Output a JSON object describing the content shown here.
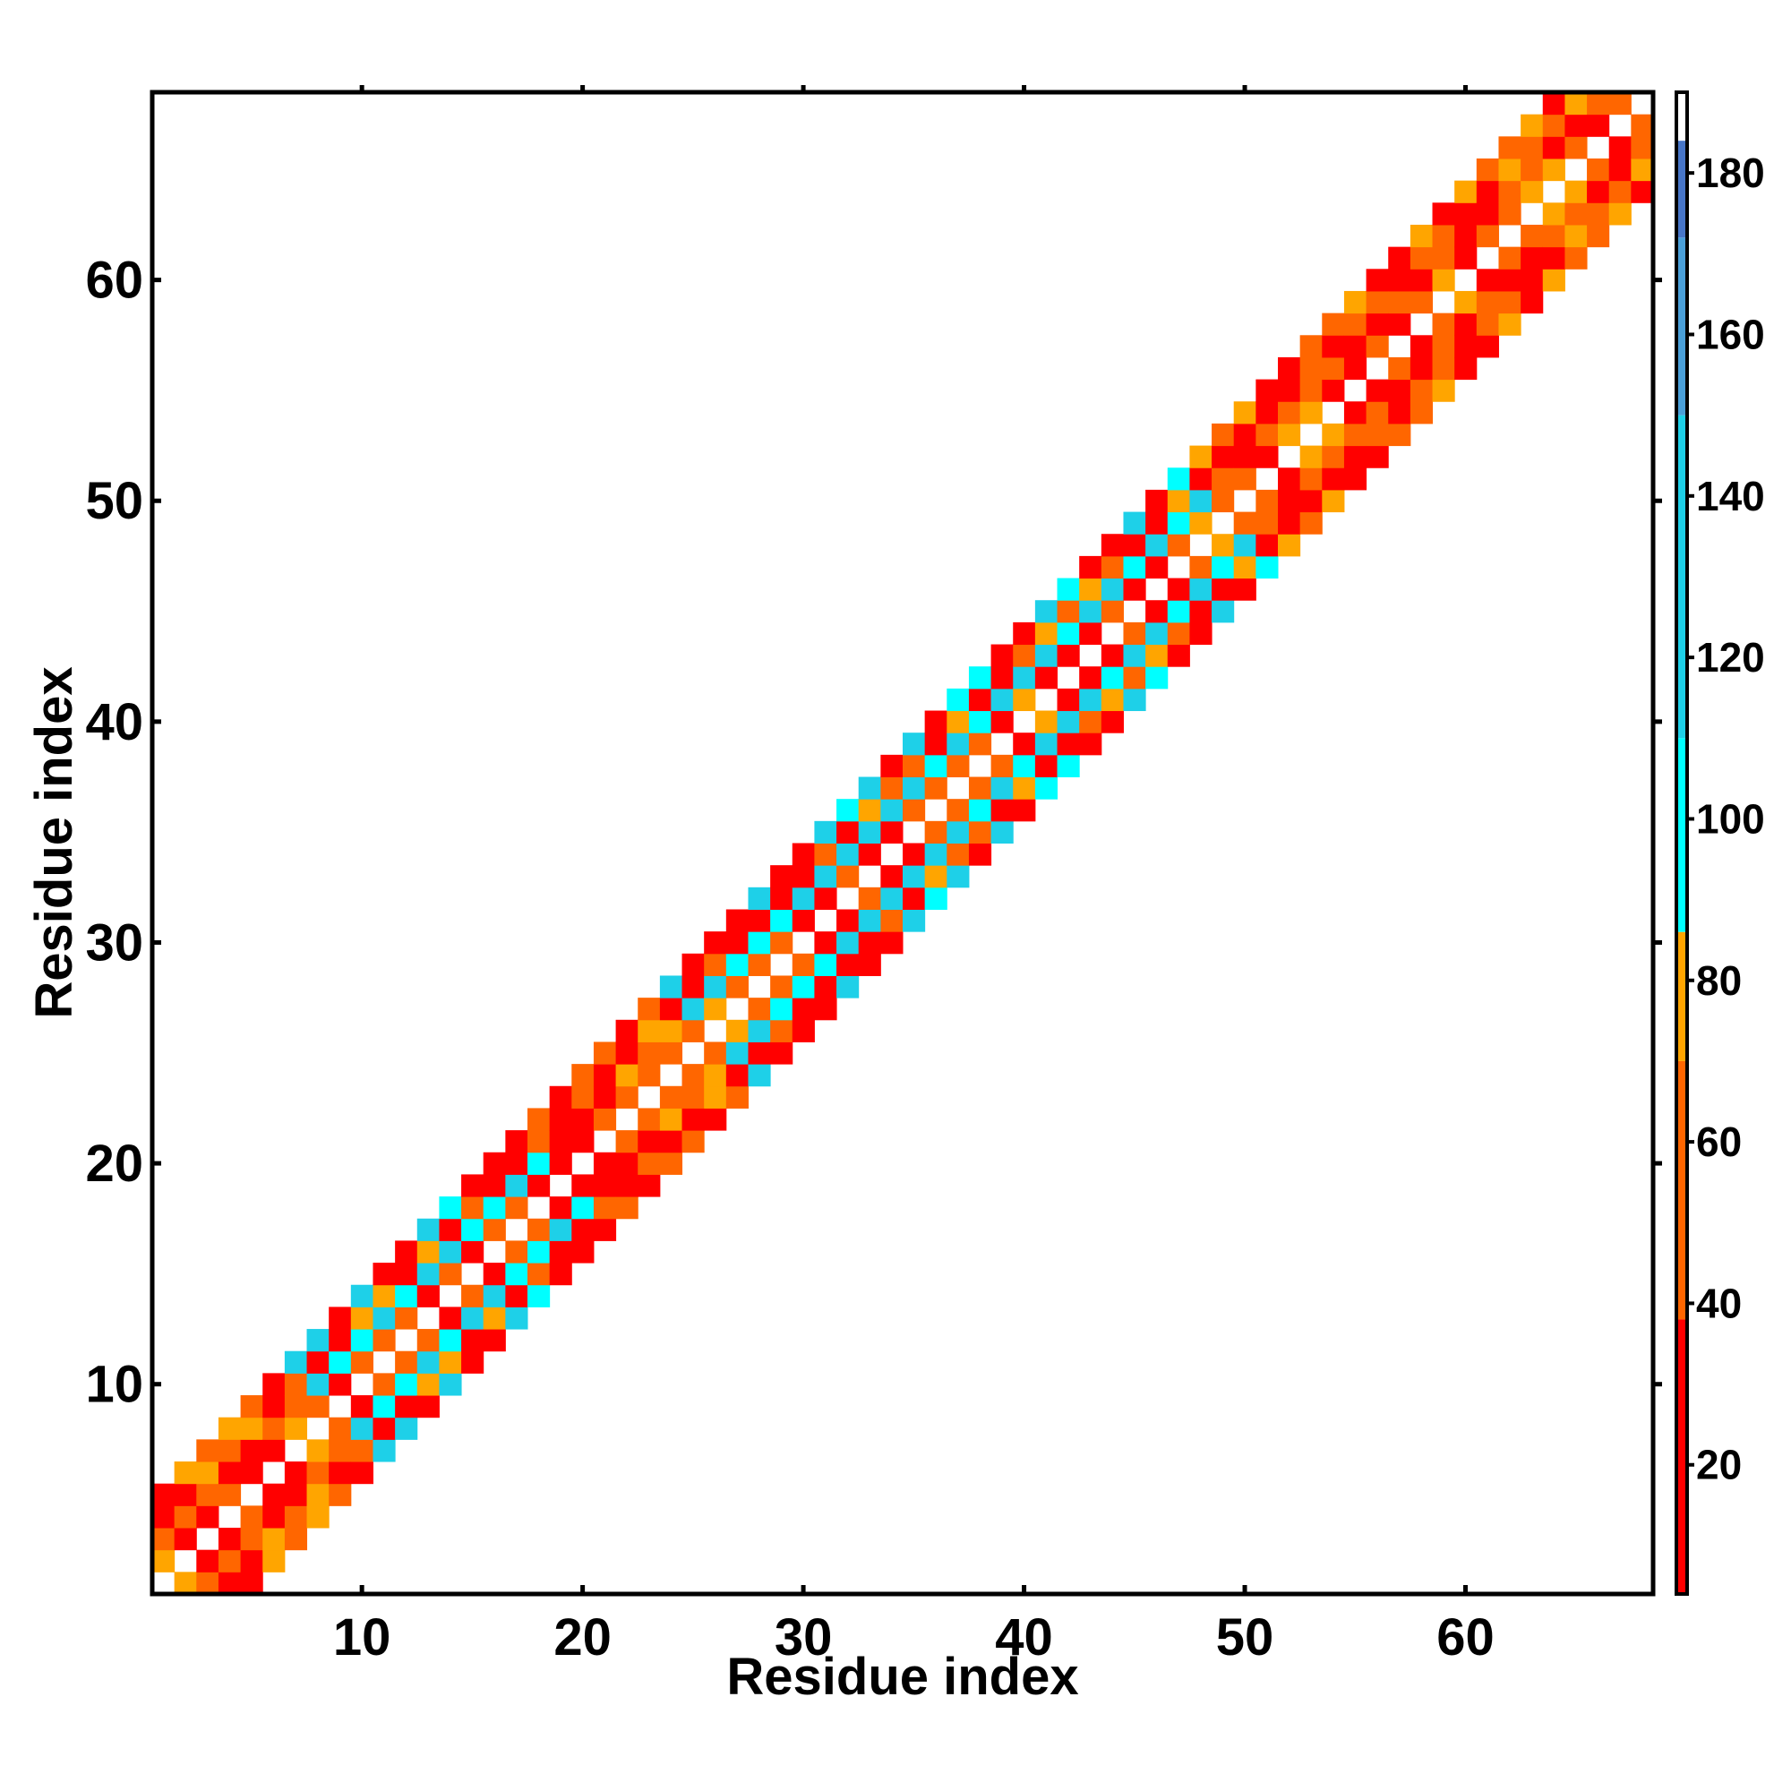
{
  "chart_data": {
    "type": "heatmap",
    "title": "",
    "xlabel": "Residue index",
    "ylabel": "Residue index",
    "xlim": [
      0.5,
      68.5
    ],
    "ylim": [
      0.5,
      68.5
    ],
    "x_ticks": [
      10,
      20,
      30,
      40,
      50,
      60
    ],
    "y_ticks": [
      10,
      20,
      30,
      40,
      50,
      60
    ],
    "x_tick_labels": [
      "10",
      "20",
      "30",
      "40",
      "50",
      "60"
    ],
    "y_tick_labels": [
      "10",
      "20",
      "30",
      "40",
      "50",
      "60"
    ],
    "band_width": 4,
    "colorbar": {
      "range": [
        4,
        190
      ],
      "ticks": [
        20,
        40,
        60,
        80,
        100,
        120,
        140,
        160,
        180
      ],
      "tick_labels": [
        "20",
        "40",
        "60",
        "80",
        "100",
        "120",
        "140",
        "160",
        "180"
      ],
      "segments": [
        {
          "from": 4,
          "to": 38,
          "color": "#ff0000"
        },
        {
          "from": 38,
          "to": 70,
          "color": "#ff6600"
        },
        {
          "from": 70,
          "to": 86,
          "color": "#ffa500"
        },
        {
          "from": 86,
          "to": 110,
          "color": "#00ffff"
        },
        {
          "from": 110,
          "to": 150,
          "color": "#1ed0e8"
        },
        {
          "from": 150,
          "to": 172,
          "color": "#4a9fd8"
        },
        {
          "from": 172,
          "to": 184,
          "color": "#4876c8"
        },
        {
          "from": 184,
          "to": 190,
          "color": "#ffffff"
        }
      ]
    },
    "description": "Symmetric contact/angle map; nonzero cells lie within a diagonal band of width ~4 residues; diagonal cells are blank (white)."
  }
}
